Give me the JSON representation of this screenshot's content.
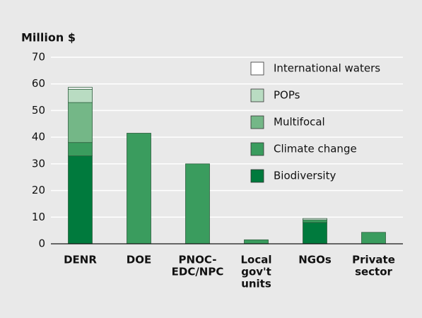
{
  "chart_data": {
    "type": "stacked_bar",
    "y_axis_label": "Million $",
    "categories": [
      [
        "DENR"
      ],
      [
        "DOE"
      ],
      [
        "PNOC-",
        "EDC/NPC"
      ],
      [
        "Local",
        "gov't",
        "units"
      ],
      [
        "NGOs"
      ],
      [
        "Private",
        "sector"
      ]
    ],
    "series": [
      {
        "name": "Biodiversity",
        "color": "#007a3d",
        "values": [
          33,
          null,
          null,
          null,
          8,
          null
        ]
      },
      {
        "name": "Climate change",
        "color": "#3a9c5e",
        "values": [
          5,
          41.5,
          30,
          1.5,
          1,
          4.3
        ]
      },
      {
        "name": "Multifocal",
        "color": "#74b787",
        "values": [
          15,
          null,
          null,
          null,
          null,
          null
        ]
      },
      {
        "name": "POPs",
        "color": "#b9dcc2",
        "values": [
          5,
          null,
          null,
          null,
          null,
          null
        ]
      },
      {
        "name": "International waters",
        "color": "#ffffff",
        "values": [
          0.7,
          null,
          null,
          null,
          0.5,
          null
        ]
      }
    ],
    "ylim": [
      0,
      70
    ],
    "yticks": [
      0,
      10,
      20,
      30,
      40,
      50,
      60,
      70
    ],
    "grid": true
  }
}
